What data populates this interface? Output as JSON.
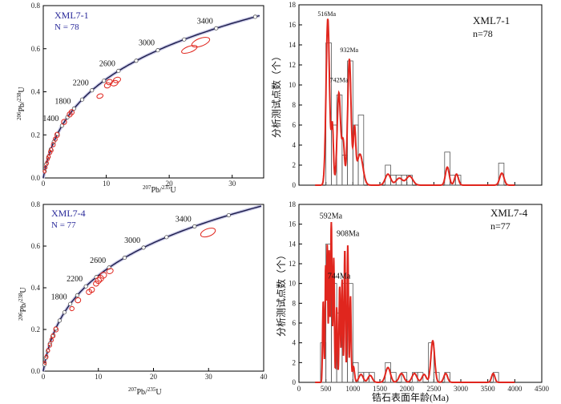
{
  "chart_data": [
    {
      "type": "scatter",
      "title": "XML7-1",
      "n_label": "N = 78",
      "xlabel_parts": [
        "207",
        "Pb/",
        "235",
        "U"
      ],
      "ylabel_parts": [
        "206",
        "Pb/",
        "238",
        "U"
      ],
      "xlim": [
        0,
        35
      ],
      "ylim": [
        0,
        0.8
      ],
      "xticks": [
        0,
        10,
        20,
        30
      ],
      "yticks": [
        0,
        0.2,
        0.4,
        0.6,
        0.8
      ],
      "concordia_age_labels": [
        {
          "age": 1400,
          "text": "1400"
        },
        {
          "age": 1800,
          "text": "1800"
        },
        {
          "age": 2200,
          "text": "2200"
        },
        {
          "age": 2600,
          "text": "2600"
        },
        {
          "age": 3000,
          "text": "3000"
        },
        {
          "age": 3400,
          "text": "3400"
        }
      ],
      "ellipses": [
        {
          "x": 0.2,
          "y": 0.03,
          "rx": 0.15,
          "ry": 0.008
        },
        {
          "x": 0.4,
          "y": 0.05,
          "rx": 0.15,
          "ry": 0.008
        },
        {
          "x": 0.6,
          "y": 0.07,
          "rx": 0.2,
          "ry": 0.009
        },
        {
          "x": 0.75,
          "y": 0.09,
          "rx": 0.2,
          "ry": 0.009
        },
        {
          "x": 0.9,
          "y": 0.1,
          "rx": 0.2,
          "ry": 0.009
        },
        {
          "x": 1.1,
          "y": 0.12,
          "rx": 0.25,
          "ry": 0.01
        },
        {
          "x": 1.3,
          "y": 0.13,
          "rx": 0.25,
          "ry": 0.01
        },
        {
          "x": 1.6,
          "y": 0.155,
          "rx": 0.3,
          "ry": 0.01
        },
        {
          "x": 1.9,
          "y": 0.18,
          "rx": 0.3,
          "ry": 0.01
        },
        {
          "x": 2.2,
          "y": 0.2,
          "rx": 0.35,
          "ry": 0.012
        },
        {
          "x": 3.3,
          "y": 0.26,
          "rx": 0.4,
          "ry": 0.012
        },
        {
          "x": 4.2,
          "y": 0.295,
          "rx": 0.4,
          "ry": 0.012
        },
        {
          "x": 4.5,
          "y": 0.305,
          "rx": 0.4,
          "ry": 0.012
        },
        {
          "x": 9.0,
          "y": 0.38,
          "rx": 0.5,
          "ry": 0.01
        },
        {
          "x": 10.2,
          "y": 0.43,
          "rx": 0.5,
          "ry": 0.012
        },
        {
          "x": 10.5,
          "y": 0.445,
          "rx": 0.5,
          "ry": 0.012
        },
        {
          "x": 11.3,
          "y": 0.44,
          "rx": 0.6,
          "ry": 0.012
        },
        {
          "x": 11.7,
          "y": 0.455,
          "rx": 0.6,
          "ry": 0.012
        },
        {
          "x": 23.2,
          "y": 0.597,
          "rx": 1.3,
          "ry": 0.014
        },
        {
          "x": 25.0,
          "y": 0.63,
          "rx": 1.5,
          "ry": 0.018
        }
      ]
    },
    {
      "type": "bar",
      "title": "XML7-1",
      "n_label": "n=78",
      "ylabel": "分析测试点数（个）",
      "xlabel": "",
      "xlim": [
        0,
        4500
      ],
      "ylim": [
        0,
        18
      ],
      "yticks": [
        0,
        2,
        4,
        6,
        8,
        10,
        12,
        14,
        16,
        18
      ],
      "bin_width": 100,
      "bins": [
        {
          "start": 500,
          "count": 14.2
        },
        {
          "start": 600,
          "count": 6
        },
        {
          "start": 700,
          "count": 9
        },
        {
          "start": 800,
          "count": 3
        },
        {
          "start": 900,
          "count": 12.4
        },
        {
          "start": 1000,
          "count": 6
        },
        {
          "start": 1100,
          "count": 7
        },
        {
          "start": 1600,
          "count": 2
        },
        {
          "start": 1700,
          "count": 1
        },
        {
          "start": 1800,
          "count": 1
        },
        {
          "start": 1900,
          "count": 1
        },
        {
          "start": 2000,
          "count": 1
        },
        {
          "start": 2700,
          "count": 3.3
        },
        {
          "start": 2800,
          "count": 1
        },
        {
          "start": 2900,
          "count": 1
        },
        {
          "start": 3700,
          "count": 2.2
        }
      ],
      "peaks": [
        {
          "age": 535,
          "height": 16.6,
          "width": 32
        },
        {
          "age": 620,
          "height": 5.8,
          "width": 20
        },
        {
          "age": 740,
          "height": 9.2,
          "width": 32
        },
        {
          "age": 820,
          "height": 4.2,
          "width": 25
        },
        {
          "age": 935,
          "height": 12.6,
          "width": 32
        },
        {
          "age": 1030,
          "height": 5.2,
          "width": 22
        },
        {
          "age": 1130,
          "height": 3.1,
          "width": 55
        },
        {
          "age": 1650,
          "height": 1.1,
          "width": 50
        },
        {
          "age": 1860,
          "height": 0.7,
          "width": 60
        },
        {
          "age": 2050,
          "height": 0.9,
          "width": 60
        },
        {
          "age": 2750,
          "height": 1.8,
          "width": 35
        },
        {
          "age": 2920,
          "height": 1.1,
          "width": 35
        },
        {
          "age": 3760,
          "height": 1.2,
          "width": 40
        }
      ],
      "annotations": [
        {
          "text": "516Ma",
          "age": 516,
          "y": 16.9
        },
        {
          "text": "742Ma",
          "age": 742,
          "y": 10.3
        },
        {
          "text": "932Ma",
          "age": 932,
          "y": 13.3
        }
      ]
    },
    {
      "type": "scatter",
      "title": "XML7-4",
      "n_label": "N = 77",
      "xlabel_parts": [
        "207",
        "Pb/",
        "235",
        "U"
      ],
      "ylabel_parts": [
        "206",
        "Pb/",
        "238",
        "U"
      ],
      "xlim": [
        0,
        40
      ],
      "ylim": [
        0,
        0.8
      ],
      "xticks": [
        0,
        10,
        20,
        30,
        40
      ],
      "yticks": [
        0,
        0.2,
        0.4,
        0.6,
        0.8
      ],
      "concordia_age_labels": [
        {
          "age": 1800,
          "text": "1800"
        },
        {
          "age": 2200,
          "text": "2200"
        },
        {
          "age": 2600,
          "text": "2600"
        },
        {
          "age": 3000,
          "text": "3000"
        },
        {
          "age": 3400,
          "text": "3400"
        }
      ],
      "ellipses": [
        {
          "x": 0.3,
          "y": 0.04,
          "rx": 0.2,
          "ry": 0.008
        },
        {
          "x": 0.6,
          "y": 0.07,
          "rx": 0.25,
          "ry": 0.009
        },
        {
          "x": 0.9,
          "y": 0.1,
          "rx": 0.25,
          "ry": 0.009
        },
        {
          "x": 1.2,
          "y": 0.125,
          "rx": 0.3,
          "ry": 0.01
        },
        {
          "x": 1.5,
          "y": 0.15,
          "rx": 0.3,
          "ry": 0.01
        },
        {
          "x": 1.8,
          "y": 0.17,
          "rx": 0.35,
          "ry": 0.01
        },
        {
          "x": 2.3,
          "y": 0.2,
          "rx": 0.4,
          "ry": 0.012
        },
        {
          "x": 5.2,
          "y": 0.3,
          "rx": 0.4,
          "ry": 0.01
        },
        {
          "x": 6.3,
          "y": 0.34,
          "rx": 0.5,
          "ry": 0.012
        },
        {
          "x": 8.3,
          "y": 0.38,
          "rx": 0.5,
          "ry": 0.012
        },
        {
          "x": 8.8,
          "y": 0.39,
          "rx": 0.5,
          "ry": 0.012
        },
        {
          "x": 9.6,
          "y": 0.42,
          "rx": 0.5,
          "ry": 0.012
        },
        {
          "x": 10.0,
          "y": 0.435,
          "rx": 0.55,
          "ry": 0.014
        },
        {
          "x": 10.4,
          "y": 0.445,
          "rx": 0.55,
          "ry": 0.014
        },
        {
          "x": 10.9,
          "y": 0.46,
          "rx": 0.6,
          "ry": 0.014
        },
        {
          "x": 12.1,
          "y": 0.48,
          "rx": 0.6,
          "ry": 0.012
        },
        {
          "x": 29.9,
          "y": 0.665,
          "rx": 1.4,
          "ry": 0.018
        }
      ]
    },
    {
      "type": "bar",
      "title": "XML7-4",
      "n_label": "n=77",
      "ylabel": "分析测试点数（个）",
      "xlabel": "锆石表面年龄(Ma)",
      "xlim": [
        0,
        4500
      ],
      "ylim": [
        0,
        18
      ],
      "xticks": [
        0,
        500,
        1000,
        1500,
        2000,
        2500,
        3000,
        3500,
        4000,
        4500
      ],
      "yticks": [
        0,
        2,
        4,
        6,
        8,
        10,
        12,
        14,
        16,
        18
      ],
      "bin_width": 100,
      "bins": [
        {
          "start": 400,
          "count": 4
        },
        {
          "start": 500,
          "count": 14
        },
        {
          "start": 600,
          "count": 10
        },
        {
          "start": 700,
          "count": 7
        },
        {
          "start": 800,
          "count": 10
        },
        {
          "start": 900,
          "count": 10
        },
        {
          "start": 1000,
          "count": 2
        },
        {
          "start": 1100,
          "count": 1
        },
        {
          "start": 1200,
          "count": 1
        },
        {
          "start": 1300,
          "count": 1
        },
        {
          "start": 1600,
          "count": 2
        },
        {
          "start": 1700,
          "count": 1
        },
        {
          "start": 1900,
          "count": 1
        },
        {
          "start": 2100,
          "count": 1
        },
        {
          "start": 2200,
          "count": 1
        },
        {
          "start": 2400,
          "count": 4
        },
        {
          "start": 2500,
          "count": 1
        },
        {
          "start": 2700,
          "count": 1
        },
        {
          "start": 3600,
          "count": 1
        }
      ],
      "peaks": [
        {
          "age": 450,
          "height": 8.2,
          "width": 12
        },
        {
          "age": 495,
          "height": 11.7,
          "width": 10
        },
        {
          "age": 525,
          "height": 13.8,
          "width": 10
        },
        {
          "age": 560,
          "height": 13.2,
          "width": 10
        },
        {
          "age": 600,
          "height": 16.2,
          "width": 13
        },
        {
          "age": 645,
          "height": 12.6,
          "width": 12
        },
        {
          "age": 700,
          "height": 7.6,
          "width": 12
        },
        {
          "age": 755,
          "height": 9.7,
          "width": 12
        },
        {
          "age": 800,
          "height": 10.4,
          "width": 12
        },
        {
          "age": 850,
          "height": 13.4,
          "width": 12
        },
        {
          "age": 905,
          "height": 13.9,
          "width": 12
        },
        {
          "age": 955,
          "height": 8.7,
          "width": 12
        },
        {
          "age": 1010,
          "height": 1.6,
          "width": 20
        },
        {
          "age": 1150,
          "height": 0.8,
          "width": 40
        },
        {
          "age": 1320,
          "height": 0.7,
          "width": 40
        },
        {
          "age": 1650,
          "height": 1.5,
          "width": 45
        },
        {
          "age": 1900,
          "height": 0.9,
          "width": 45
        },
        {
          "age": 2140,
          "height": 0.9,
          "width": 45
        },
        {
          "age": 2320,
          "height": 0.8,
          "width": 40
        },
        {
          "age": 2480,
          "height": 4.2,
          "width": 35
        },
        {
          "age": 2720,
          "height": 0.9,
          "width": 35
        },
        {
          "age": 3600,
          "height": 0.9,
          "width": 30
        }
      ],
      "annotations": [
        {
          "text": "592Ma",
          "age": 592,
          "y": 16.6
        },
        {
          "text": "908Ma",
          "age": 908,
          "y": 14.8
        },
        {
          "text": "744Ma",
          "age": 744,
          "y": 10.5
        }
      ]
    }
  ]
}
